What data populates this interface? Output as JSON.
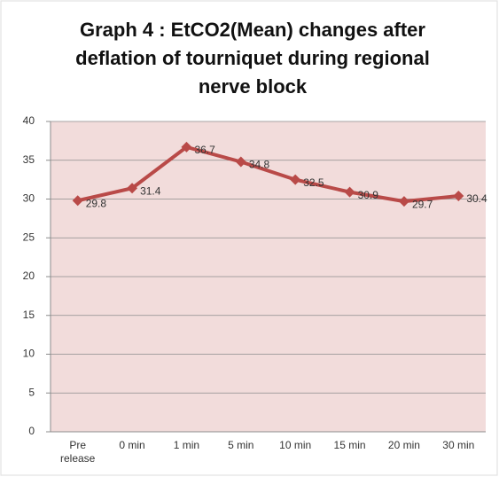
{
  "chart_data": {
    "type": "line",
    "title": "Graph 4 : EtCO2(Mean) changes after deflation of tourniquet during regional nerve block",
    "categories": [
      "Pre release",
      "0 min",
      "1 min",
      "5 min",
      "10 min",
      "15 min",
      "20 min",
      "30 min"
    ],
    "series": [
      {
        "name": "EtCO2(Mean)",
        "color": "#b94a48",
        "values": [
          29.8,
          31.4,
          36.7,
          34.8,
          32.5,
          30.9,
          29.7,
          30.4
        ]
      }
    ],
    "ylim": [
      0,
      40
    ],
    "yticks": [
      0,
      5,
      10,
      15,
      20,
      25,
      30,
      35,
      40
    ],
    "grid": true
  }
}
